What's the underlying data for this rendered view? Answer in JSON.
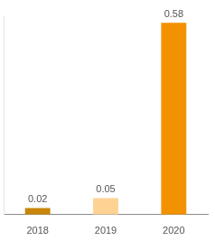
{
  "chart_data": {
    "type": "bar",
    "categories": [
      "2018",
      "2019",
      "2020"
    ],
    "values": [
      0.02,
      0.05,
      0.58
    ],
    "colors": [
      "#c8870a",
      "#fdd293",
      "#f39200"
    ],
    "ylim": [
      0,
      0.6
    ],
    "data_labels": true,
    "grid": false,
    "tick_labels": "x"
  }
}
